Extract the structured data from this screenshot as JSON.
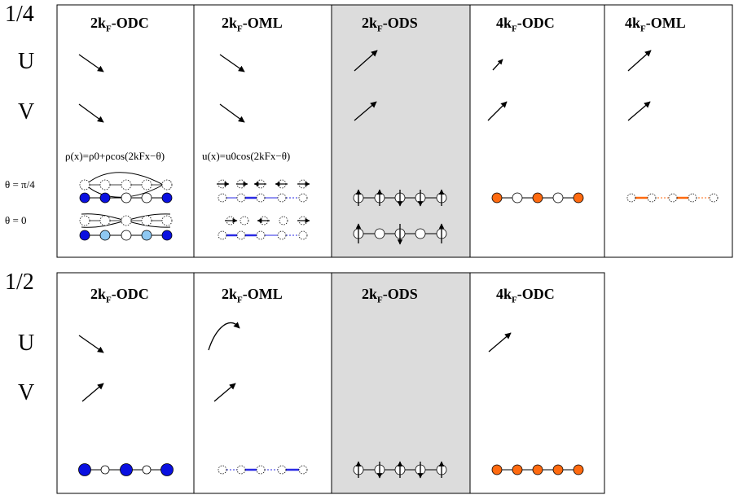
{
  "top": {
    "filling": "1/4",
    "rows": {
      "u": "U",
      "v": "V",
      "theta_pi4": "θ = π/4",
      "theta_0": "θ = 0"
    },
    "columns": [
      {
        "title_main": "2k",
        "title_sub": "F",
        "title_suffix": "-ODC",
        "shaded": false
      },
      {
        "title_main": "2k",
        "title_sub": "F",
        "title_suffix": "-OML",
        "shaded": false
      },
      {
        "title_main": "2k",
        "title_sub": "F",
        "title_suffix": "-ODS",
        "shaded": true
      },
      {
        "title_main": "4k",
        "title_sub": "F",
        "title_suffix": "-ODC",
        "shaded": false
      },
      {
        "title_main": "4k",
        "title_sub": "F",
        "title_suffix": "-OML",
        "shaded": false
      }
    ],
    "formula_charge": "ρ(x)=ρ0+ρcos(2kFx−θ)",
    "formula_lattice": "u(x)=u0cos(2kFx−θ)"
  },
  "bottom": {
    "filling": "1/2",
    "rows": {
      "u": "U",
      "v": "V"
    },
    "columns": [
      {
        "title_main": "2k",
        "title_sub": "F",
        "title_suffix": "-ODC",
        "shaded": false
      },
      {
        "title_main": "2k",
        "title_sub": "F",
        "title_suffix": "-OML",
        "shaded": false
      },
      {
        "title_main": "2k",
        "title_sub": "F",
        "title_suffix": "-ODS",
        "shaded": true
      },
      {
        "title_main": "4k",
        "title_sub": "F",
        "title_suffix": "-ODC",
        "shaded": false
      }
    ]
  },
  "colors": {
    "dark_blue": "#0a10e0",
    "light_blue": "#8ec8f2",
    "orange": "#ff6a10",
    "shade": "#dcdcdc",
    "blue_bond": "#2a2ae6"
  }
}
